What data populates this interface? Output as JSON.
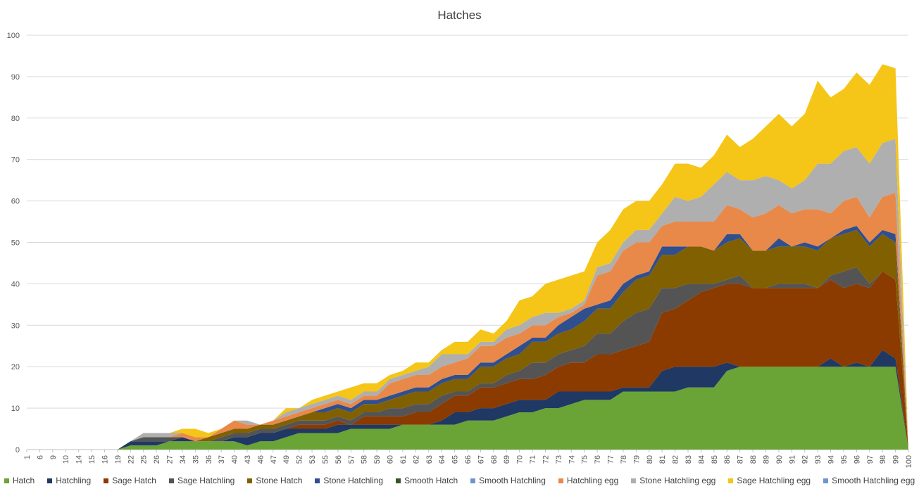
{
  "chart_data": {
    "type": "area",
    "stacked": true,
    "title": "Hatches",
    "xlabel": "",
    "ylabel": "",
    "ylim": [
      0,
      100
    ],
    "yticks": [
      0,
      10,
      20,
      30,
      40,
      50,
      60,
      70,
      80,
      90,
      100
    ],
    "grid": true,
    "legend_position": "bottom",
    "categories": [
      "1",
      "6",
      "9",
      "10",
      "14",
      "15",
      "16",
      "19",
      "22",
      "25",
      "26",
      "27",
      "34",
      "35",
      "36",
      "37",
      "40",
      "43",
      "46",
      "47",
      "49",
      "52",
      "53",
      "55",
      "56",
      "57",
      "58",
      "59",
      "60",
      "61",
      "62",
      "63",
      "64",
      "65",
      "66",
      "67",
      "68",
      "69",
      "70",
      "71",
      "72",
      "73",
      "74",
      "75",
      "76",
      "77",
      "78",
      "79",
      "80",
      "81",
      "82",
      "83",
      "84",
      "85",
      "86",
      "87",
      "88",
      "89",
      "90",
      "91",
      "92",
      "93",
      "94",
      "95",
      "96",
      "97",
      "98",
      "99",
      "100"
    ],
    "series": [
      {
        "name": "Hatch",
        "color": "#6aa336",
        "values": [
          0,
          0,
          0,
          0,
          0,
          0,
          0,
          0,
          1,
          1,
          1,
          2,
          2,
          2,
          2,
          2,
          2,
          1,
          2,
          2,
          3,
          4,
          4,
          4,
          4,
          5,
          5,
          5,
          5,
          6,
          6,
          6,
          6,
          6,
          7,
          7,
          7,
          8,
          9,
          9,
          10,
          10,
          11,
          12,
          12,
          12,
          14,
          14,
          14,
          14,
          14,
          15,
          15,
          15,
          19,
          20,
          20,
          20,
          20,
          20,
          20,
          20,
          20,
          20,
          20,
          20,
          20,
          20,
          0
        ]
      },
      {
        "name": "Hatchling",
        "color": "#1f3864",
        "values": [
          0,
          0,
          0,
          0,
          0,
          0,
          0,
          0,
          1,
          1,
          1,
          0,
          1,
          0,
          0,
          0,
          1,
          2,
          2,
          2,
          2,
          1,
          1,
          1,
          2,
          1,
          1,
          1,
          1,
          0,
          0,
          0,
          1,
          3,
          2,
          3,
          3,
          3,
          3,
          3,
          2,
          4,
          3,
          2,
          2,
          2,
          1,
          1,
          1,
          5,
          6,
          5,
          5,
          5,
          2,
          0,
          0,
          0,
          0,
          0,
          0,
          0,
          2,
          0,
          1,
          0,
          4,
          2,
          0
        ]
      },
      {
        "name": "Sage Hatch",
        "color": "#8b3a00",
        "values": [
          0,
          0,
          0,
          0,
          0,
          0,
          0,
          0,
          0,
          0,
          0,
          0,
          0,
          0,
          0,
          0,
          0,
          0,
          0,
          0,
          0,
          1,
          1,
          1,
          1,
          0,
          2,
          2,
          2,
          2,
          3,
          3,
          4,
          4,
          4,
          5,
          5,
          5,
          5,
          5,
          6,
          6,
          7,
          7,
          9,
          9,
          9,
          10,
          11,
          14,
          14,
          16,
          18,
          19,
          19,
          20,
          19,
          19,
          19,
          19,
          19,
          19,
          19,
          19,
          19,
          19,
          19,
          19,
          0
        ]
      },
      {
        "name": "Sage Hatchling",
        "color": "#545454",
        "values": [
          0,
          0,
          0,
          0,
          0,
          0,
          0,
          0,
          0,
          1,
          1,
          1,
          0,
          0,
          0,
          1,
          1,
          1,
          1,
          1,
          1,
          1,
          1,
          1,
          1,
          1,
          1,
          1,
          2,
          2,
          2,
          2,
          2,
          1,
          1,
          1,
          1,
          2,
          2,
          4,
          3,
          3,
          3,
          4,
          5,
          5,
          7,
          8,
          8,
          6,
          5,
          4,
          2,
          1,
          1,
          2,
          0,
          0,
          1,
          1,
          1,
          0,
          1,
          4,
          4,
          1,
          0,
          0,
          0
        ]
      },
      {
        "name": "Stone Hatch",
        "color": "#806000",
        "values": [
          0,
          0,
          0,
          0,
          0,
          0,
          0,
          0,
          0,
          0,
          0,
          0,
          0,
          0,
          1,
          1,
          1,
          1,
          1,
          1,
          1,
          1,
          2,
          2,
          2,
          2,
          2,
          2,
          2,
          3,
          3,
          3,
          3,
          3,
          3,
          4,
          4,
          4,
          4,
          5,
          5,
          5,
          5,
          6,
          6,
          6,
          7,
          8,
          8,
          8,
          8,
          9,
          9,
          8,
          9,
          9,
          9,
          9,
          9,
          9,
          9,
          9,
          9,
          9,
          9,
          9,
          9,
          9,
          0
        ]
      },
      {
        "name": "Stone Hatchling",
        "color": "#2f4f8f",
        "values": [
          0,
          0,
          0,
          0,
          0,
          0,
          0,
          0,
          0,
          0,
          0,
          0,
          0,
          0,
          0,
          0,
          0,
          0,
          0,
          0,
          0,
          0,
          0,
          1,
          1,
          1,
          1,
          1,
          1,
          1,
          1,
          1,
          1,
          1,
          1,
          1,
          1,
          1,
          2,
          1,
          1,
          2,
          3,
          3,
          1,
          2,
          2,
          1,
          1,
          2,
          2,
          0,
          0,
          0,
          2,
          1,
          0,
          0,
          2,
          0,
          1,
          1,
          0,
          1,
          1,
          1,
          1,
          2,
          0
        ]
      },
      {
        "name": "Smooth Hatch",
        "color": "#375623",
        "values": [
          0,
          0,
          0,
          0,
          0,
          0,
          0,
          0,
          0,
          0,
          0,
          0,
          0,
          0,
          0,
          0,
          0,
          0,
          0,
          0,
          0,
          0,
          0,
          0,
          0,
          0,
          0,
          0,
          0,
          0,
          0,
          0,
          0,
          0,
          0,
          0,
          0,
          0,
          0,
          0,
          0,
          0,
          0,
          0,
          0,
          0,
          0,
          0,
          0,
          0,
          0,
          0,
          0,
          0,
          0,
          0,
          0,
          0,
          0,
          0,
          0,
          0,
          0,
          0,
          0,
          0,
          0,
          0,
          0
        ]
      },
      {
        "name": "Smooth Hatchling",
        "color": "#6f95d1",
        "values": [
          0,
          0,
          0,
          0,
          0,
          0,
          0,
          0,
          0,
          0,
          0,
          0,
          0,
          0,
          0,
          0,
          0,
          0,
          0,
          0,
          0,
          0,
          0,
          0,
          0,
          0,
          0,
          0,
          0,
          0,
          0,
          0,
          0,
          0,
          0,
          0,
          0,
          0,
          0,
          0,
          0,
          0,
          0,
          0,
          0,
          0,
          0,
          0,
          0,
          0,
          0,
          0,
          0,
          0,
          0,
          0,
          0,
          0,
          0,
          0,
          0,
          0,
          0,
          0,
          0,
          0,
          0,
          0,
          0
        ]
      },
      {
        "name": "Hatchling egg",
        "color": "#e8894a",
        "values": [
          0,
          0,
          0,
          0,
          0,
          0,
          0,
          0,
          0,
          0,
          0,
          0,
          1,
          1,
          0,
          1,
          2,
          1,
          0,
          1,
          1,
          1,
          1,
          1,
          1,
          1,
          1,
          1,
          3,
          3,
          3,
          3,
          3,
          3,
          4,
          4,
          4,
          4,
          3,
          3,
          3,
          2,
          1,
          1,
          7,
          7,
          8,
          8,
          7,
          5,
          6,
          6,
          6,
          7,
          7,
          6,
          8,
          9,
          8,
          8,
          8,
          9,
          6,
          7,
          7,
          6,
          8,
          10,
          0
        ]
      },
      {
        "name": "Stone Hatchling egg",
        "color": "#afafaf",
        "values": [
          0,
          0,
          0,
          0,
          0,
          0,
          0,
          0,
          0,
          1,
          1,
          1,
          0,
          0,
          0,
          0,
          0,
          1,
          0,
          0,
          1,
          1,
          1,
          1,
          1,
          1,
          1,
          1,
          1,
          1,
          1,
          2,
          3,
          2,
          1,
          1,
          1,
          2,
          2,
          2,
          3,
          1,
          1,
          1,
          2,
          2,
          2,
          3,
          3,
          3,
          6,
          5,
          6,
          9,
          8,
          7,
          9,
          9,
          6,
          6,
          7,
          11,
          12,
          12,
          12,
          13,
          13,
          13,
          0
        ]
      },
      {
        "name": "Sage Hatchling egg",
        "color": "#f5c518",
        "values": [
          0,
          0,
          0,
          0,
          0,
          0,
          0,
          0,
          0,
          0,
          0,
          0,
          1,
          2,
          1,
          0,
          0,
          0,
          0,
          0,
          1,
          0,
          1,
          1,
          1,
          3,
          2,
          2,
          1,
          1,
          2,
          1,
          1,
          3,
          3,
          3,
          2,
          2,
          6,
          5,
          7,
          8,
          8,
          7,
          6,
          8,
          8,
          7,
          7,
          7,
          8,
          9,
          7,
          7,
          9,
          8,
          10,
          12,
          16,
          15,
          16,
          20,
          16,
          15,
          18,
          19,
          19,
          17,
          0
        ]
      },
      {
        "name": "Smooth Hatchling egg",
        "color": "#6f95d1",
        "values": [
          0,
          0,
          0,
          0,
          0,
          0,
          0,
          0,
          0,
          0,
          0,
          0,
          0,
          0,
          0,
          0,
          0,
          0,
          0,
          0,
          0,
          0,
          0,
          0,
          0,
          0,
          0,
          0,
          0,
          0,
          0,
          0,
          0,
          0,
          0,
          0,
          0,
          0,
          0,
          0,
          0,
          0,
          0,
          0,
          0,
          0,
          0,
          0,
          0,
          0,
          0,
          0,
          0,
          0,
          0,
          0,
          0,
          0,
          0,
          0,
          0,
          0,
          0,
          0,
          0,
          0,
          0,
          0,
          0
        ]
      }
    ]
  }
}
